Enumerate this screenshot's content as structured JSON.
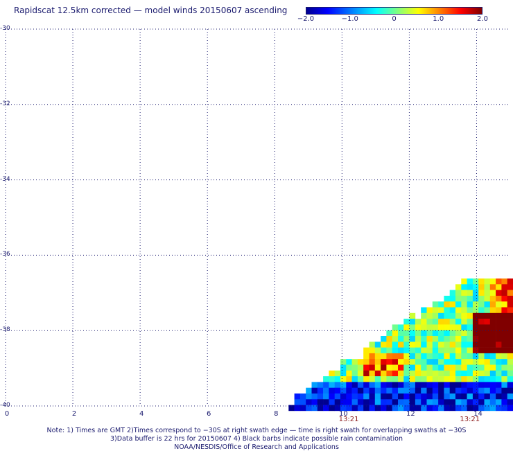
{
  "title": "Rapidscat 12.5km corrected — model winds 20150607 ascending",
  "colorbar": {
    "ticks": [
      {
        "value": -2.0,
        "label": "−2.0"
      },
      {
        "value": -1.0,
        "label": "−1.0"
      },
      {
        "value": 0,
        "label": "0"
      },
      {
        "value": 1.0,
        "label": "1.0"
      },
      {
        "value": 2.0,
        "label": "2.0"
      }
    ],
    "colors": [
      "#00008f",
      "#0000ff",
      "#0080ff",
      "#00ffff",
      "#80ff80",
      "#ffff00",
      "#ff8000",
      "#ff0000",
      "#800000"
    ]
  },
  "chart_data": {
    "type": "heatmap",
    "title": "Rapidscat 12.5km corrected — model winds 20150607 ascending",
    "xlim": [
      0,
      15
    ],
    "ylim": [
      -40,
      -30
    ],
    "x_ticks": [
      {
        "value": 0,
        "label": "0"
      },
      {
        "value": 2,
        "label": "2"
      },
      {
        "value": 4,
        "label": "4"
      },
      {
        "value": 6,
        "label": "6"
      },
      {
        "value": 8,
        "label": "8"
      },
      {
        "value": 10,
        "label": "10"
      },
      {
        "value": 12,
        "label": "12"
      },
      {
        "value": 14,
        "label": "14"
      }
    ],
    "y_ticks": [
      {
        "value": -30,
        "label": "-30"
      },
      {
        "value": -32,
        "label": "-32"
      },
      {
        "value": -34,
        "label": "-34"
      },
      {
        "value": -36,
        "label": "-36"
      },
      {
        "value": -38,
        "label": "-38"
      },
      {
        "value": -40,
        "label": "-40"
      }
    ],
    "grid": true,
    "swath_times": [
      {
        "lon": 10.2,
        "label": "13:21"
      },
      {
        "lon": 13.8,
        "label": "13:21"
      }
    ],
    "value_range": [
      -2.0,
      2.0
    ]
  },
  "notes": [
    "Note: 1) Times are GMT 2)Times correspond to −30S at right swath edge — time is right swath for overlapping swaths at −30S",
    "3)Data buffer is 22 hrs for 20150607 4) Black barbs indicate possible rain contamination",
    "NOAA/NESDIS/Office of Research and Applications"
  ]
}
